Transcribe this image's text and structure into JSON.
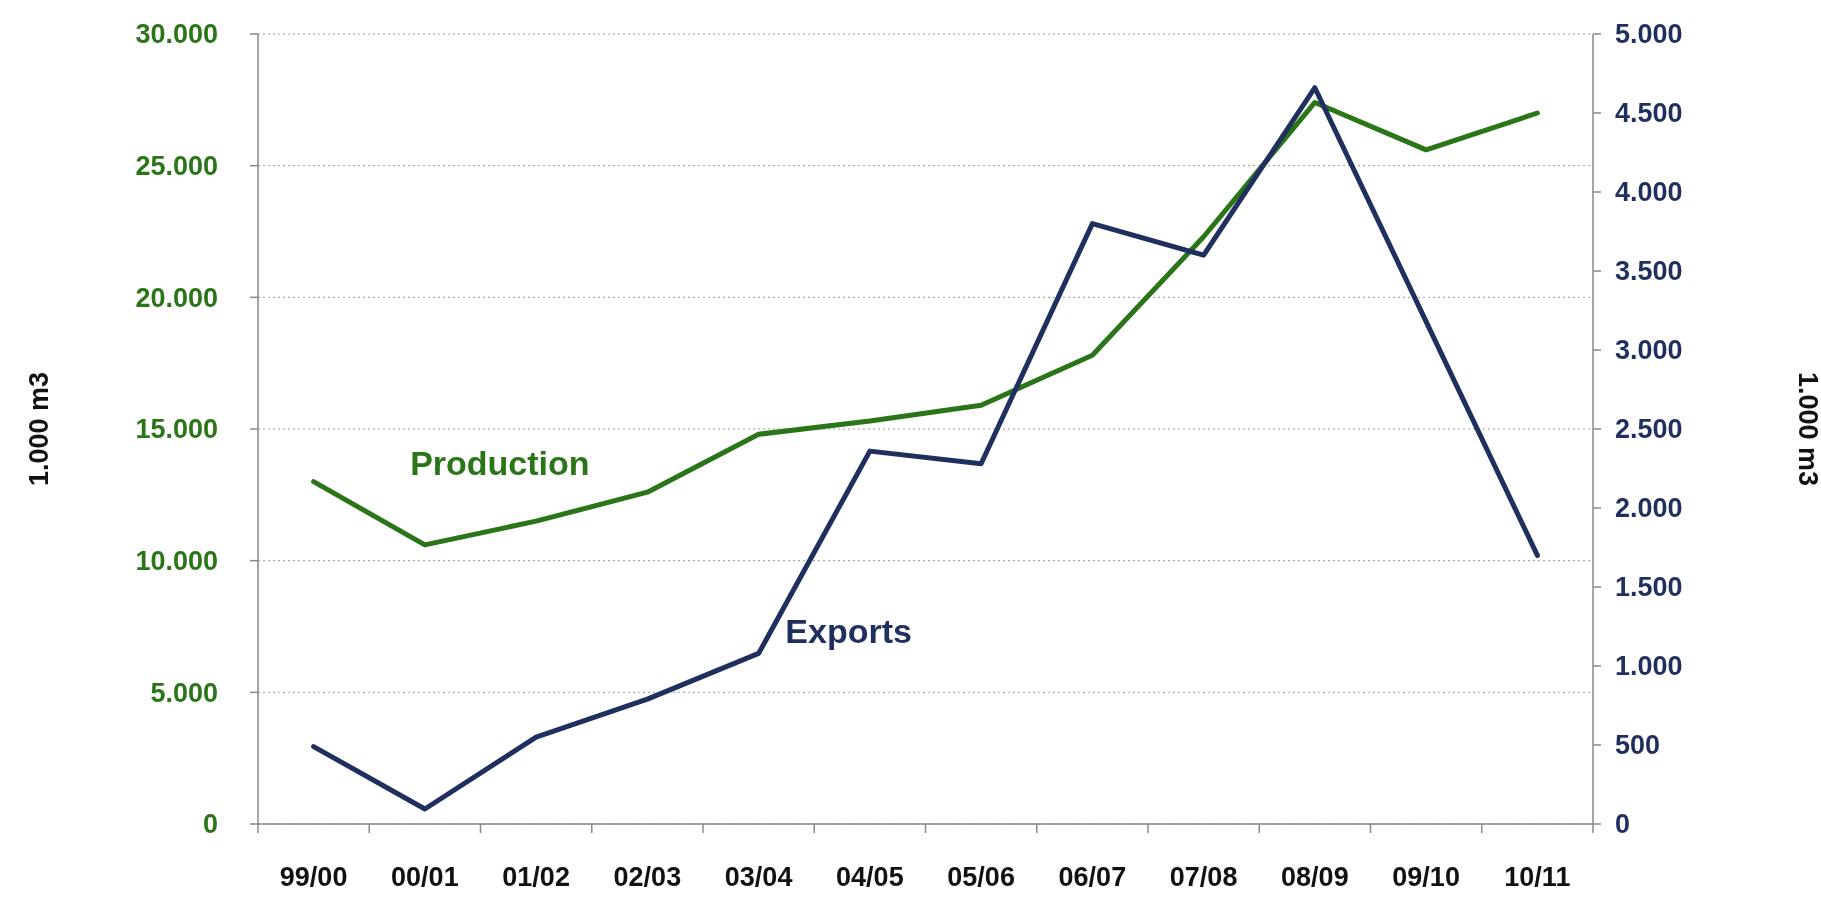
{
  "chart_data": {
    "type": "line",
    "categories": [
      "99/00",
      "00/01",
      "01/02",
      "02/03",
      "03/04",
      "04/05",
      "05/06",
      "06/07",
      "07/08",
      "08/09",
      "09/10",
      "10/11"
    ],
    "series": [
      {
        "name": "Production",
        "color": "#2a7518",
        "values": [
          13000,
          10600,
          11500,
          12600,
          14800,
          15300,
          15900,
          17800,
          22300,
          27400,
          25600,
          27000
        ]
      },
      {
        "name": "Exports",
        "color": "#1f2f5e",
        "axis": "y2",
        "values": [
          490,
          95,
          550,
          790,
          1080,
          2360,
          2280,
          3800,
          3600,
          4660,
          3180,
          1700
        ]
      }
    ],
    "ylabel": "1.000 m3",
    "y2label": "1.000 m3",
    "ylim": [
      0,
      30000
    ],
    "yticks": [
      0,
      {
        "value": 5000,
        "label": "5.000"
      },
      {
        "value": 10000,
        "label": "10.000"
      },
      {
        "value": 15000,
        "label": "15.000"
      },
      {
        "value": 20000,
        "label": "20.000"
      },
      {
        "value": 25000,
        "label": "25.000"
      },
      {
        "value": 30000,
        "label": "30.000"
      }
    ],
    "y2lim": [
      0,
      5000
    ],
    "y2ticks": [
      0,
      500,
      {
        "value": 1000,
        "label": "1.000"
      },
      {
        "value": 1500,
        "label": "1.500"
      },
      {
        "value": 2000,
        "label": "2.000"
      },
      {
        "value": 2500,
        "label": "2.500"
      },
      {
        "value": 3000,
        "label": "3.000"
      },
      {
        "value": 3500,
        "label": "3.500"
      },
      {
        "value": 4000,
        "label": "4.000"
      },
      {
        "value": 4500,
        "label": "4.500"
      },
      {
        "value": 5000,
        "label": "5.000"
      }
    ],
    "grid": "y",
    "marker": "none",
    "line_style": "solid"
  }
}
